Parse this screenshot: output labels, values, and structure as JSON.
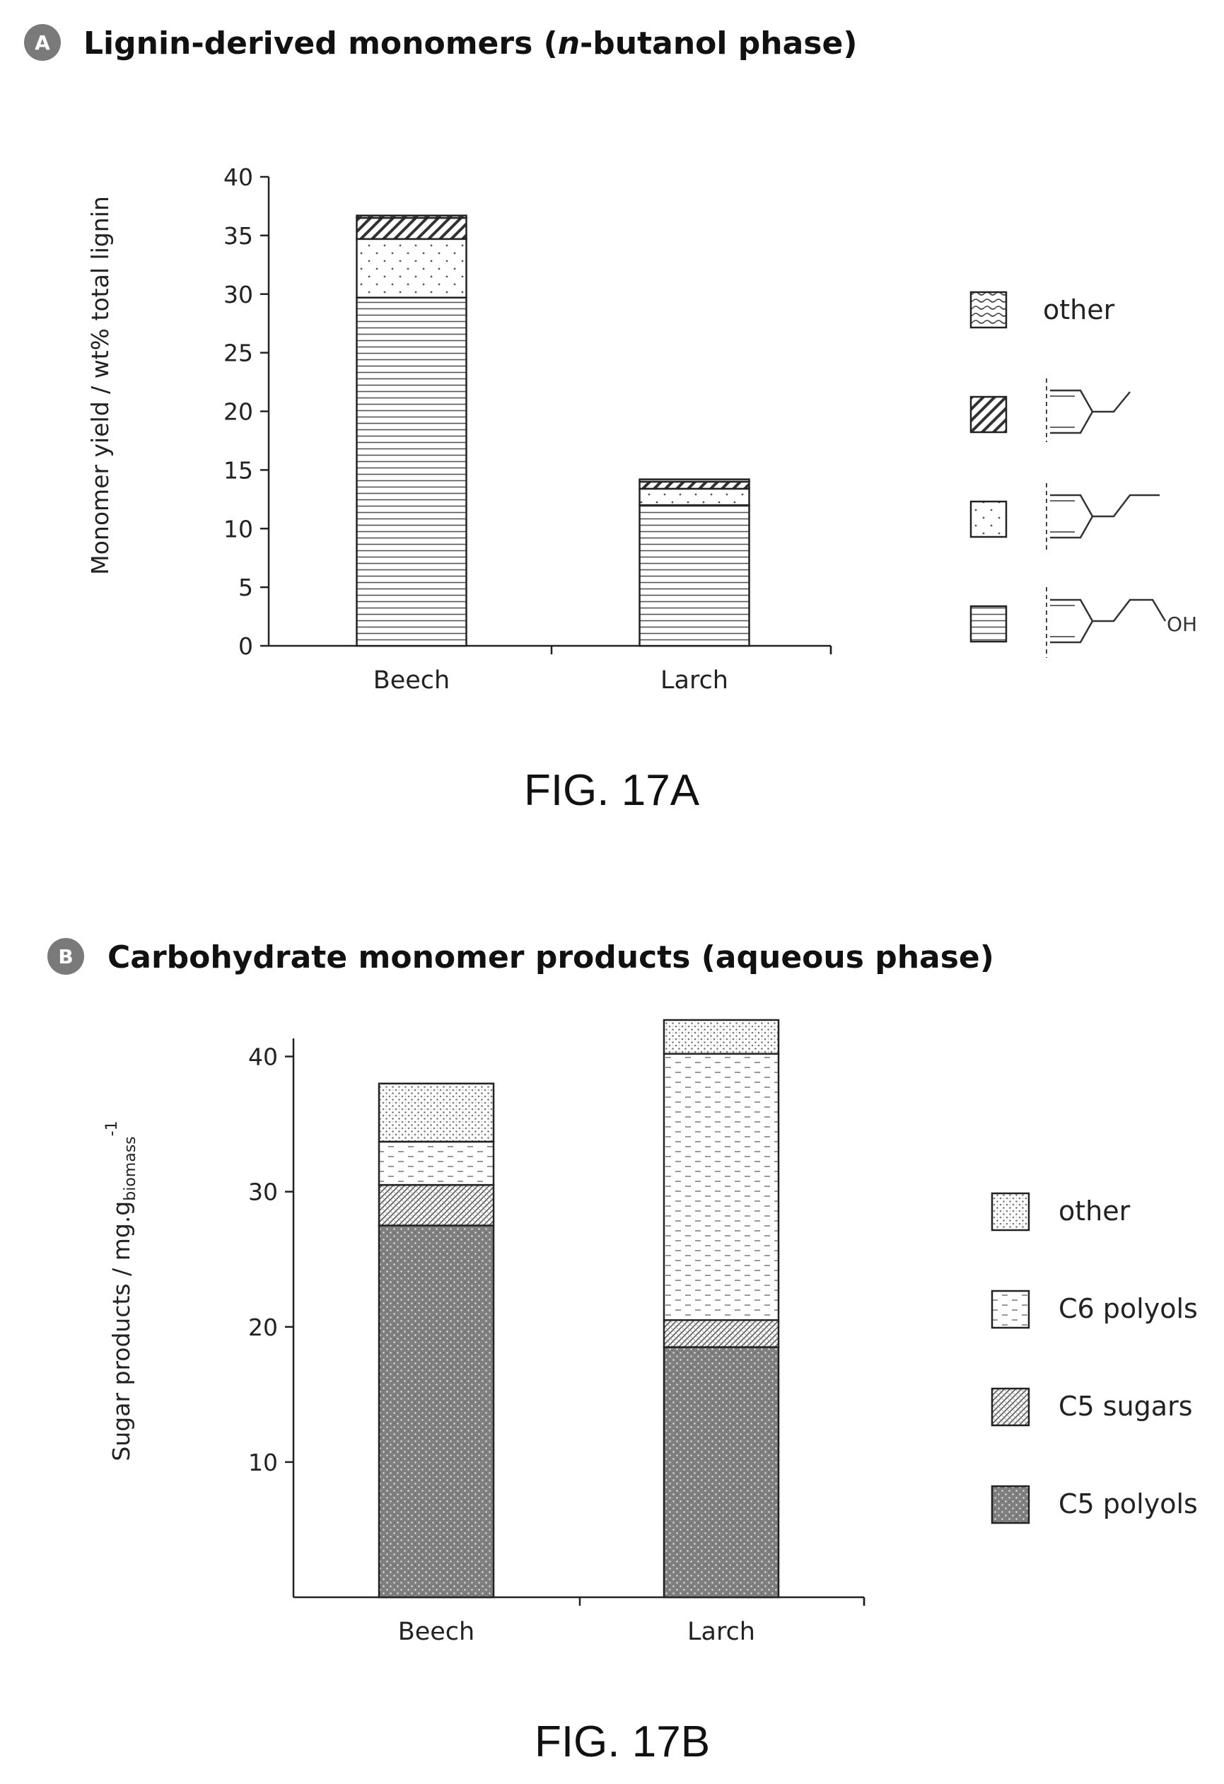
{
  "panel_a": {
    "badge": "A",
    "title_before": "Lignin-derived monomers (",
    "title_italic": "n",
    "title_after": "-butanol phase)",
    "figure_caption": "FIG. 17A"
  },
  "panel_b": {
    "badge": "B",
    "title": "Carbohydrate monomer products (aqueous phase)",
    "figure_caption": "FIG. 17B"
  },
  "chart_data": [
    {
      "type": "bar",
      "stacked": true,
      "ylabel": "Monomer yield / wt% total lignin",
      "ylim": [
        0,
        40
      ],
      "yticks": [
        0,
        5,
        10,
        15,
        20,
        25,
        30,
        35,
        40
      ],
      "categories": [
        "Beech",
        "Larch"
      ],
      "series": [
        {
          "legend": "propanol-substituted monomer (structure, OH)",
          "label_text": "OH",
          "pattern": "horizontal-lines",
          "values": [
            29.7,
            12.0
          ]
        },
        {
          "legend": "propyl-substituted monomer (structure)",
          "pattern": "dots",
          "values": [
            5.0,
            1.4
          ]
        },
        {
          "legend": "ethyl-substituted monomer (structure)",
          "pattern": "diagonal-hatch",
          "values": [
            1.8,
            0.6
          ]
        },
        {
          "name": "other",
          "pattern": "waves",
          "values": [
            0.2,
            0.2
          ]
        }
      ],
      "legend_position": "right"
    },
    {
      "type": "bar",
      "stacked": true,
      "ylabel_main": "Sugar products / mg.g",
      "ylabel_sub": "biomass",
      "ylabel_sup": "-1",
      "ylim": [
        0,
        45
      ],
      "yticks": [
        10,
        20,
        30,
        40
      ],
      "categories": [
        "Beech",
        "Larch"
      ],
      "series": [
        {
          "name": "C5 polyols",
          "pattern": "dense-dark-dots",
          "values": [
            27.5,
            18.5
          ]
        },
        {
          "name": "C5 sugars",
          "pattern": "crosshatch",
          "values": [
            3.0,
            2.0
          ]
        },
        {
          "name": "C6 polyols",
          "pattern": "dashes",
          "values": [
            3.2,
            19.7
          ]
        },
        {
          "name": "other",
          "pattern": "light-dots",
          "values": [
            4.3,
            2.5
          ]
        }
      ],
      "legend_position": "right"
    }
  ]
}
